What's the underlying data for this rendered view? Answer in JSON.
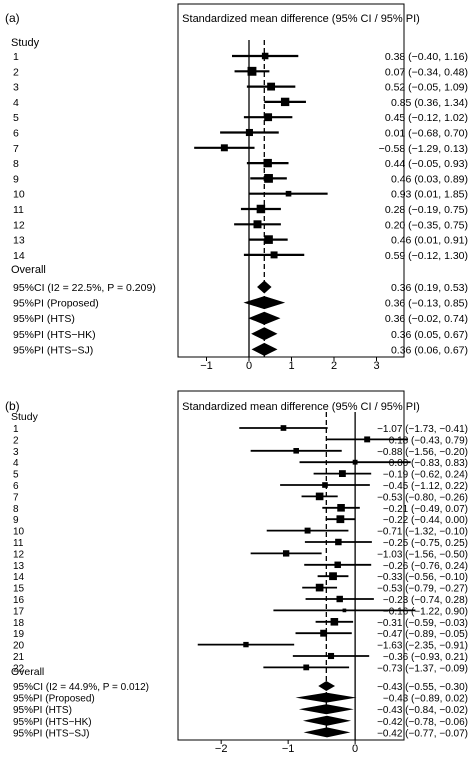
{
  "chart_data": [
    {
      "type": "forest",
      "panel_label": "(a)",
      "title": "Standardized mean difference (95% CI / 95% PI)",
      "study_header": "Study",
      "overall_header": "Overall",
      "xlim": [
        -1.6,
        3.6
      ],
      "xticks": [
        -1,
        0,
        1,
        2,
        3
      ],
      "tick_labels": [
        "−1",
        "0",
        "1",
        "2",
        "3"
      ],
      "reference_line": 0,
      "dashed_line": 0.36,
      "studies": [
        {
          "label": "1",
          "est": 0.38,
          "lo": -0.4,
          "hi": 1.16,
          "text": "0.38 (−0.40, 1.16)"
        },
        {
          "label": "2",
          "est": 0.07,
          "lo": -0.34,
          "hi": 0.48,
          "text": "0.07 (−0.34, 0.48)"
        },
        {
          "label": "3",
          "est": 0.52,
          "lo": -0.05,
          "hi": 1.09,
          "text": "0.52 (−0.05, 1.09)"
        },
        {
          "label": "4",
          "est": 0.85,
          "lo": 0.36,
          "hi": 1.34,
          "text": "0.85 (0.36, 1.34)"
        },
        {
          "label": "5",
          "est": 0.45,
          "lo": -0.12,
          "hi": 1.02,
          "text": "0.45 (−0.12, 1.02)"
        },
        {
          "label": "6",
          "est": 0.01,
          "lo": -0.68,
          "hi": 0.7,
          "text": "0.01 (−0.68, 0.70)"
        },
        {
          "label": "7",
          "est": -0.58,
          "lo": -1.29,
          "hi": 0.13,
          "text": "−0.58 (−1.29, 0.13)"
        },
        {
          "label": "8",
          "est": 0.44,
          "lo": -0.05,
          "hi": 0.93,
          "text": "0.44 (−0.05, 0.93)"
        },
        {
          "label": "9",
          "est": 0.46,
          "lo": 0.03,
          "hi": 0.89,
          "text": "0.46 (0.03, 0.89)"
        },
        {
          "label": "10",
          "est": 0.93,
          "lo": 0.01,
          "hi": 1.85,
          "text": "0.93 (0.01, 1.85)"
        },
        {
          "label": "11",
          "est": 0.28,
          "lo": -0.19,
          "hi": 0.75,
          "text": "0.28 (−0.19, 0.75)"
        },
        {
          "label": "12",
          "est": 0.2,
          "lo": -0.35,
          "hi": 0.75,
          "text": "0.20 (−0.35, 0.75)"
        },
        {
          "label": "13",
          "est": 0.46,
          "lo": 0.01,
          "hi": 0.91,
          "text": "0.46 (0.01, 0.91)"
        },
        {
          "label": "14",
          "est": 0.59,
          "lo": -0.12,
          "hi": 1.3,
          "text": "0.59 (−0.12, 1.30)"
        }
      ],
      "summaries": [
        {
          "label": "95%CI (I2 = 22.5%, P = 0.209)",
          "est": 0.36,
          "lo": 0.19,
          "hi": 0.53,
          "text": "0.36 (0.19, 0.53)"
        },
        {
          "label": "95%PI (Proposed)",
          "est": 0.36,
          "lo": -0.13,
          "hi": 0.85,
          "text": "0.36 (−0.13, 0.85)"
        },
        {
          "label": "95%PI (HTS)",
          "est": 0.36,
          "lo": -0.02,
          "hi": 0.74,
          "text": "0.36 (−0.02, 0.74)"
        },
        {
          "label": "95%PI (HTS−HK)",
          "est": 0.36,
          "lo": 0.05,
          "hi": 0.67,
          "text": "0.36 (0.05, 0.67)"
        },
        {
          "label": "95%PI (HTS−SJ)",
          "est": 0.36,
          "lo": 0.06,
          "hi": 0.67,
          "text": "0.36 (0.06, 0.67)"
        }
      ]
    },
    {
      "type": "forest",
      "panel_label": "(b)",
      "title": "Standardized mean difference (95% CI / 95% PI)",
      "study_header": "Study",
      "overall_header": "Overall",
      "xlim": [
        -2.6,
        0.7
      ],
      "xticks": [
        -2,
        -1,
        0
      ],
      "tick_labels": [
        "−2",
        "−1",
        "0"
      ],
      "reference_line": 0,
      "dashed_line": -0.43,
      "studies": [
        {
          "label": "1",
          "est": -1.07,
          "lo": -1.73,
          "hi": -0.41,
          "text": "−1.07 (−1.73, −0.41)"
        },
        {
          "label": "2",
          "est": 0.18,
          "lo": -0.43,
          "hi": 0.79,
          "text": "0.18 (−0.43, 0.79)"
        },
        {
          "label": "3",
          "est": -0.88,
          "lo": -1.56,
          "hi": -0.2,
          "text": "−0.88 (−1.56, −0.20)"
        },
        {
          "label": "4",
          "est": 0.0,
          "lo": -0.83,
          "hi": 0.83,
          "text": "0.00 (−0.83, 0.83)"
        },
        {
          "label": "5",
          "est": -0.19,
          "lo": -0.62,
          "hi": 0.24,
          "text": "−0.19 (−0.62, 0.24)"
        },
        {
          "label": "6",
          "est": -0.45,
          "lo": -1.12,
          "hi": 0.22,
          "text": "−0.45 (−1.12, 0.22)"
        },
        {
          "label": "7",
          "est": -0.53,
          "lo": -0.8,
          "hi": -0.26,
          "text": "−0.53 (−0.80, −0.26)"
        },
        {
          "label": "8",
          "est": -0.21,
          "lo": -0.49,
          "hi": 0.07,
          "text": "−0.21 (−0.49, 0.07)"
        },
        {
          "label": "9",
          "est": -0.22,
          "lo": -0.44,
          "hi": 0.0,
          "text": "−0.22 (−0.44, 0.00)"
        },
        {
          "label": "10",
          "est": -0.71,
          "lo": -1.32,
          "hi": -0.1,
          "text": "−0.71 (−1.32, −0.10)"
        },
        {
          "label": "11",
          "est": -0.25,
          "lo": -0.75,
          "hi": 0.25,
          "text": "−0.25 (−0.75, 0.25)"
        },
        {
          "label": "12",
          "est": -1.03,
          "lo": -1.56,
          "hi": -0.5,
          "text": "−1.03 (−1.56, −0.50)"
        },
        {
          "label": "13",
          "est": -0.26,
          "lo": -0.76,
          "hi": 0.24,
          "text": "−0.26 (−0.76, 0.24)"
        },
        {
          "label": "14",
          "est": -0.33,
          "lo": -0.56,
          "hi": -0.1,
          "text": "−0.33 (−0.56, −0.10)"
        },
        {
          "label": "15",
          "est": -0.53,
          "lo": -0.79,
          "hi": -0.27,
          "text": "−0.53 (−0.79, −0.27)"
        },
        {
          "label": "16",
          "est": -0.23,
          "lo": -0.74,
          "hi": 0.28,
          "text": "−0.23 (−0.74, 0.28)"
        },
        {
          "label": "17",
          "est": -0.16,
          "lo": -1.22,
          "hi": 0.9,
          "text": "−0.16 (−1.22, 0.90)"
        },
        {
          "label": "18",
          "est": -0.31,
          "lo": -0.59,
          "hi": -0.03,
          "text": "−0.31 (−0.59, −0.03)"
        },
        {
          "label": "19",
          "est": -0.47,
          "lo": -0.89,
          "hi": -0.05,
          "text": "−0.47 (−0.89, −0.05)"
        },
        {
          "label": "20",
          "est": -1.63,
          "lo": -2.35,
          "hi": -0.91,
          "text": "−1.63 (−2.35, −0.91)"
        },
        {
          "label": "21",
          "est": -0.36,
          "lo": -0.93,
          "hi": 0.21,
          "text": "−0.36 (−0.93, 0.21)"
        },
        {
          "label": "22",
          "est": -0.73,
          "lo": -1.37,
          "hi": -0.09,
          "text": "−0.73 (−1.37, −0.09)"
        }
      ],
      "summaries": [
        {
          "label": "95%CI (I2 = 44.9%, P = 0.012)",
          "est": -0.43,
          "lo": -0.55,
          "hi": -0.3,
          "text": "−0.43 (−0.55, −0.30)"
        },
        {
          "label": "95%PI (Proposed)",
          "est": -0.43,
          "lo": -0.89,
          "hi": 0.02,
          "text": "−0.43 (−0.89, 0.02)"
        },
        {
          "label": "95%PI (HTS)",
          "est": -0.43,
          "lo": -0.84,
          "hi": -0.02,
          "text": "−0.43 (−0.84, −0.02)"
        },
        {
          "label": "95%PI (HTS−HK)",
          "est": -0.42,
          "lo": -0.78,
          "hi": -0.06,
          "text": "−0.42 (−0.78, −0.06)"
        },
        {
          "label": "95%PI (HTS−SJ)",
          "est": -0.42,
          "lo": -0.77,
          "hi": -0.07,
          "text": "−0.42 (−0.77, −0.07)"
        }
      ]
    }
  ]
}
